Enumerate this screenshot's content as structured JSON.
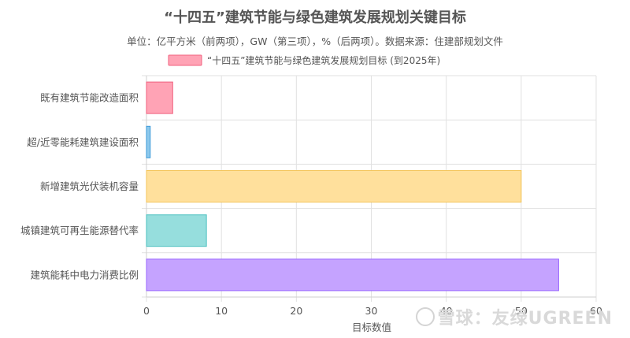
{
  "chart_data": {
    "type": "bar",
    "orientation": "horizontal",
    "title": "“十四五”建筑节能与绿色建筑发展规划关键目标",
    "subtitle": "单位：亿平方米（前两项），GW（第三项），%（后两项）。数据来源：住建部规划文件",
    "legend": {
      "label": "“十四五”建筑节能与绿色建筑发展规划目标 (到2025年)",
      "placement": "top-center"
    },
    "xlabel": "目标数值",
    "xlim": [
      0,
      60
    ],
    "xticks": [
      0,
      10,
      20,
      30,
      40,
      50,
      60
    ],
    "grid": true,
    "categories": [
      "既有建筑节能改造面积",
      "超/近零能耗建筑建设面积",
      "新增建筑光伏装机容量",
      "城镇建筑可再生能源替代率",
      "建筑能耗中电力消费比例"
    ],
    "values": [
      3.5,
      0.5,
      50,
      8,
      55
    ],
    "colors": [
      {
        "fill": "#ffa3b5",
        "stroke": "#f0607e"
      },
      {
        "fill": "#8ec9ec",
        "stroke": "#3a99d9"
      },
      {
        "fill": "#ffe09c",
        "stroke": "#f4c55a"
      },
      {
        "fill": "#96dedd",
        "stroke": "#4bc0c0"
      },
      {
        "fill": "#c5a3ff",
        "stroke": "#9966ff"
      }
    ]
  },
  "watermark": "雪球：友绿UGREEN"
}
